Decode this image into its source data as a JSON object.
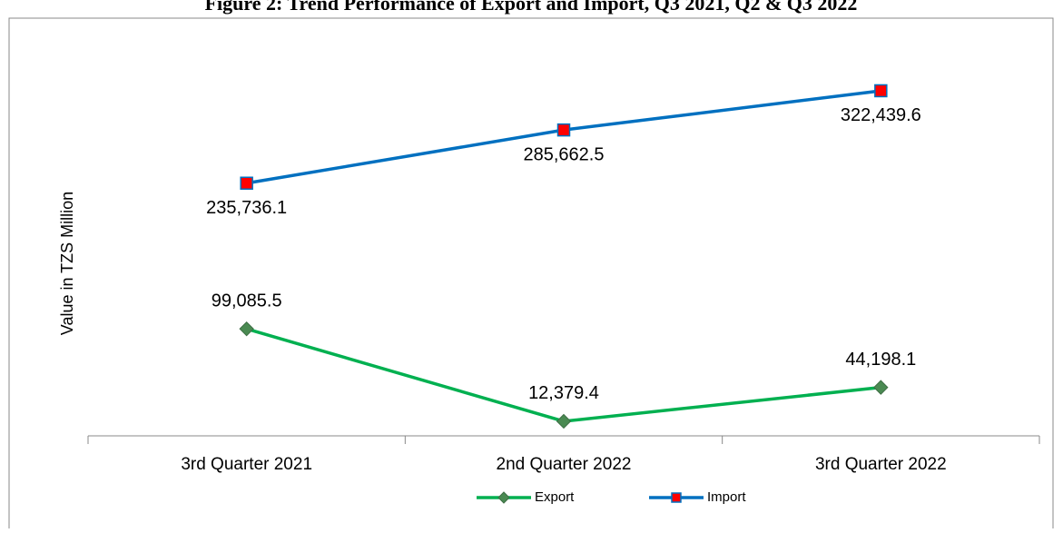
{
  "chart_data": {
    "type": "line",
    "title": "Figure 2: Trend Performance of Export and Import, Q3 2021, Q2 & Q3 2022",
    "y_label": "Value in TZS Million",
    "categories": [
      "3rd Quarter 2021",
      "2nd Quarter 2022",
      "3rd Quarter 2022"
    ],
    "series": [
      {
        "name": "Export",
        "color": "#00b050",
        "marker_color": "#4a8a52",
        "marker": "diamond",
        "values": [
          99085.5,
          12379.4,
          44198.1
        ],
        "value_labels": [
          "99,085.5",
          "12,379.4",
          "44,198.1"
        ]
      },
      {
        "name": "Import",
        "color": "#0070c0",
        "marker_color": "#ff0000",
        "marker": "square",
        "values": [
          235736.1,
          285662.5,
          322439.6
        ],
        "value_labels": [
          "235,736.1",
          "285,662.5",
          "322,439.6"
        ]
      }
    ],
    "ylim": [
      0,
      350000
    ],
    "legend": "bottom"
  }
}
